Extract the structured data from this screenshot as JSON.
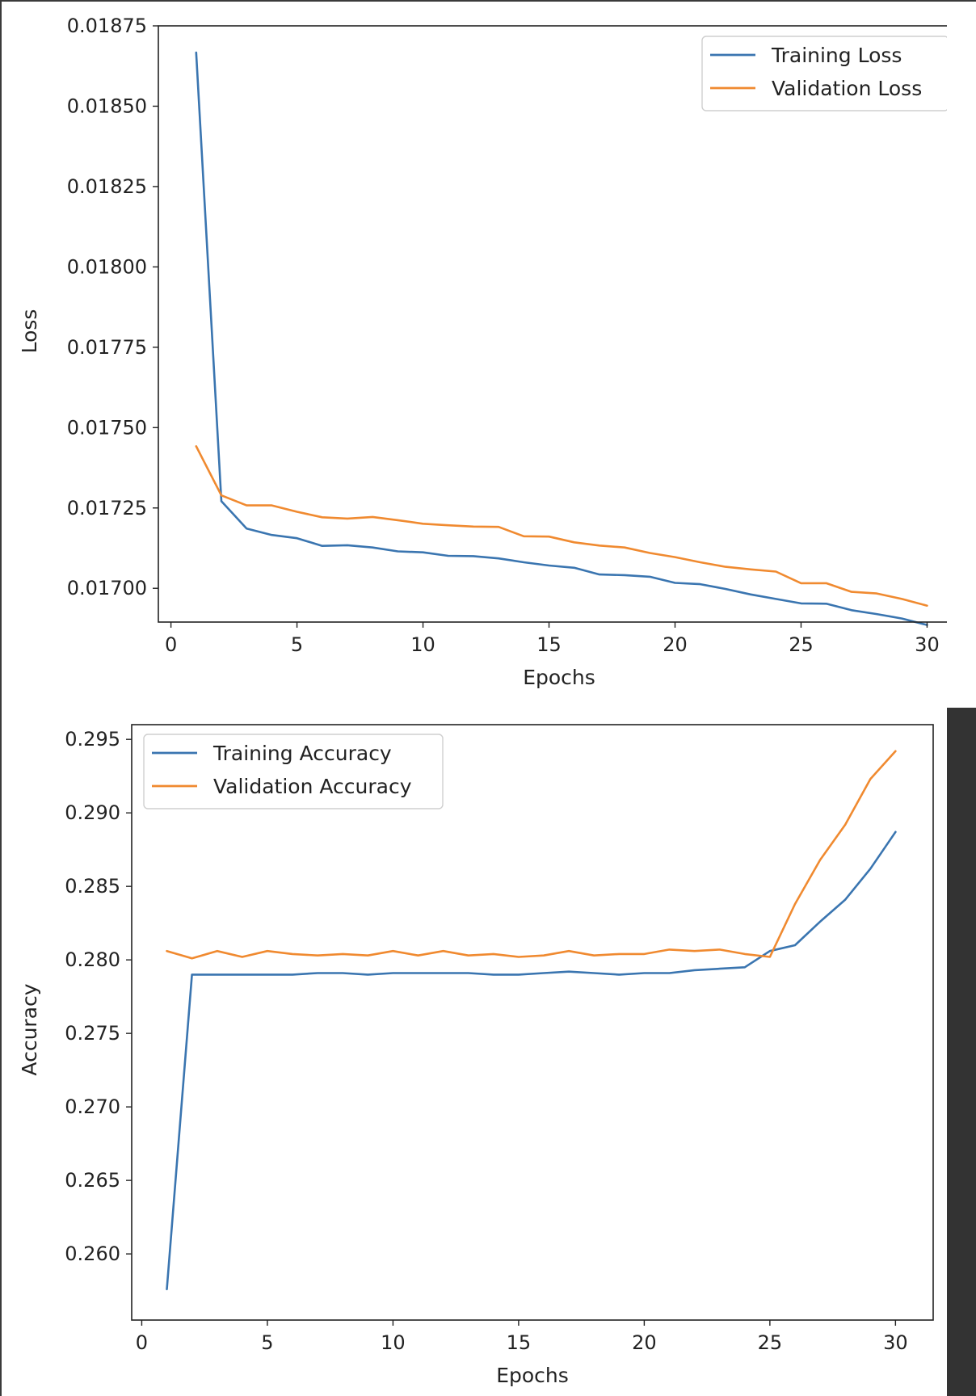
{
  "theme": {
    "train_color": "#3a75b0",
    "val_color": "#f08a30",
    "frame_color": "#222222",
    "scroll_track_color": "#333333",
    "edge_color": "#3a3a3a"
  },
  "chart_data": [
    {
      "type": "line",
      "xlabel": "Epochs",
      "ylabel": "Loss",
      "xlim": [
        -0.5,
        31.3
      ],
      "ylim": [
        0.016895,
        0.01875
      ],
      "xticks": [
        0,
        5,
        10,
        15,
        20,
        25,
        30
      ],
      "yticks": [
        0.017,
        0.01725,
        0.0175,
        0.01775,
        0.018,
        0.01825,
        0.0185,
        0.01875
      ],
      "ytick_labels": [
        "0.01700",
        "0.01725",
        "0.01750",
        "0.01775",
        "0.01800",
        "0.01825",
        "0.01850",
        "0.01875"
      ],
      "grid": false,
      "legend_position": "top-right",
      "x": [
        1,
        2,
        3,
        4,
        5,
        6,
        7,
        8,
        9,
        10,
        11,
        12,
        13,
        14,
        15,
        16,
        17,
        18,
        19,
        20,
        21,
        22,
        23,
        24,
        25,
        26,
        27,
        28,
        29,
        30
      ],
      "series": [
        {
          "name": "Training Loss",
          "color": "#3a75b0",
          "values": [
            0.018667,
            0.017271,
            0.017186,
            0.017166,
            0.017156,
            0.017132,
            0.017134,
            0.017127,
            0.017115,
            0.017112,
            0.017101,
            0.0171,
            0.017093,
            0.017081,
            0.017071,
            0.017064,
            0.017043,
            0.017041,
            0.017036,
            0.017017,
            0.017013,
            0.016998,
            0.016981,
            0.016967,
            0.016953,
            0.016952,
            0.016932,
            0.01692,
            0.016906,
            0.016886
          ]
        },
        {
          "name": "Validation Loss",
          "color": "#f08a30",
          "values": [
            0.017442,
            0.017289,
            0.017258,
            0.017258,
            0.017238,
            0.017221,
            0.017217,
            0.017222,
            0.017212,
            0.017201,
            0.017196,
            0.017192,
            0.017191,
            0.017162,
            0.017161,
            0.017143,
            0.017133,
            0.017127,
            0.01711,
            0.017097,
            0.017081,
            0.017067,
            0.017059,
            0.017052,
            0.017016,
            0.017016,
            0.016989,
            0.016984,
            0.016967,
            0.016946
          ]
        }
      ]
    },
    {
      "type": "line",
      "xlabel": "Epochs",
      "ylabel": "Accuracy",
      "xlim": [
        -0.4,
        31.5
      ],
      "ylim": [
        0.2555,
        0.296
      ],
      "xticks": [
        0,
        5,
        10,
        15,
        20,
        25,
        30
      ],
      "yticks": [
        0.26,
        0.265,
        0.27,
        0.275,
        0.28,
        0.285,
        0.29,
        0.295
      ],
      "ytick_labels": [
        "0.260",
        "0.265",
        "0.270",
        "0.275",
        "0.280",
        "0.285",
        "0.290",
        "0.295"
      ],
      "grid": false,
      "legend_position": "top-left",
      "x": [
        1,
        2,
        3,
        4,
        5,
        6,
        7,
        8,
        9,
        10,
        11,
        12,
        13,
        14,
        15,
        16,
        17,
        18,
        19,
        20,
        21,
        22,
        23,
        24,
        25,
        26,
        27,
        28,
        29,
        30
      ],
      "series": [
        {
          "name": "Training Accuracy",
          "color": "#3a75b0",
          "values": [
            0.2576,
            0.279,
            0.279,
            0.279,
            0.279,
            0.279,
            0.2791,
            0.2791,
            0.279,
            0.2791,
            0.2791,
            0.2791,
            0.2791,
            0.279,
            0.279,
            0.2791,
            0.2792,
            0.2791,
            0.279,
            0.2791,
            0.2791,
            0.2793,
            0.2794,
            0.2795,
            0.2806,
            0.281,
            0.2826,
            0.2841,
            0.2862,
            0.2887
          ]
        },
        {
          "name": "Validation Accuracy",
          "color": "#f08a30",
          "values": [
            0.2806,
            0.2801,
            0.2806,
            0.2802,
            0.2806,
            0.2804,
            0.2803,
            0.2804,
            0.2803,
            0.2806,
            0.2803,
            0.2806,
            0.2803,
            0.2804,
            0.2802,
            0.2803,
            0.2806,
            0.2803,
            0.2804,
            0.2804,
            0.2807,
            0.2806,
            0.2807,
            0.2804,
            0.2802,
            0.2838,
            0.2868,
            0.2892,
            0.2923,
            0.2942
          ]
        }
      ]
    }
  ]
}
